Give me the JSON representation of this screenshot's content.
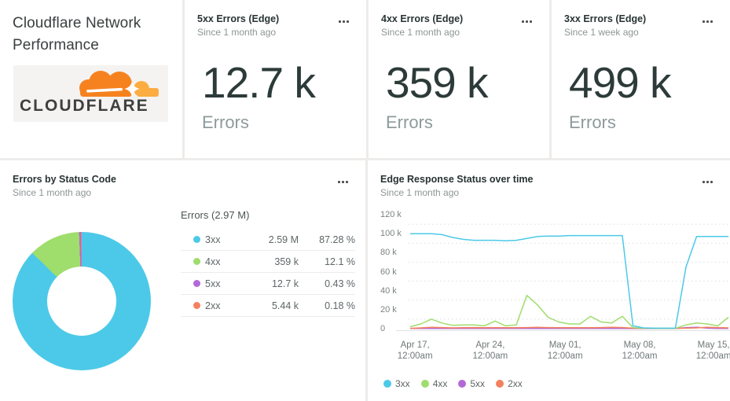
{
  "title_card": {
    "title": "Cloudflare Network Performance",
    "logo_text": "CLOUDFLARE"
  },
  "metric_cards": [
    {
      "title": "5xx Errors (Edge)",
      "subtitle": "Since 1 month ago",
      "value": "12.7 k",
      "unit": "Errors"
    },
    {
      "title": "4xx Errors (Edge)",
      "subtitle": "Since 1 month ago",
      "value": "359 k",
      "unit": "Errors"
    },
    {
      "title": "3xx Errors (Edge)",
      "subtitle": "Since 1 week ago",
      "value": "499 k",
      "unit": "Errors"
    }
  ],
  "colors": {
    "brand_orange": "#F6821F",
    "brand_orange_light": "#FBAD41",
    "status_3xx": "#4CC9E8",
    "status_4xx": "#9FDD6C",
    "status_5xx": "#B269D6",
    "status_2xx": "#F4805E"
  },
  "chart_data": [
    {
      "type": "pie",
      "donut": true,
      "title": "Errors by Status Code",
      "subtitle": "Since 1 month ago",
      "legend_header": "Errors (2.97 M)",
      "legend_position": "right",
      "slices": [
        {
          "label": "3xx",
          "value": "2.59 M",
          "percent": 87.28,
          "percent_label": "87.28 %",
          "color": "#4CC9E8"
        },
        {
          "label": "4xx",
          "value": "359 k",
          "percent": 12.1,
          "percent_label": "12.1 %",
          "color": "#9FDD6C"
        },
        {
          "label": "5xx",
          "value": "12.7 k",
          "percent": 0.43,
          "percent_label": "0.43 %",
          "color": "#B269D6"
        },
        {
          "label": "2xx",
          "value": "5.44 k",
          "percent": 0.18,
          "percent_label": "0.18 %",
          "color": "#F4805E"
        }
      ]
    },
    {
      "type": "line",
      "title": "Edge Response Status over time",
      "subtitle": "Since 1 month ago",
      "ylabel": "",
      "xlabel": "",
      "ylim_k": [
        0,
        120
      ],
      "grid": "dotted-horizontal",
      "legend_position": "bottom",
      "values_unit": "k",
      "x_range": [
        "Apr 16, 12:00am",
        "May 16, 12:00am"
      ],
      "y_ticks": [
        "120 k",
        "100 k",
        "80 k",
        "60 k",
        "40 k",
        "20 k",
        "0"
      ],
      "x_ticks": [
        {
          "label_line1": "Apr 17,",
          "label_line2": "12:00am",
          "x_frac": 0.02
        },
        {
          "label_line1": "Apr 24,",
          "label_line2": "12:00am",
          "x_frac": 0.254
        },
        {
          "label_line1": "May 01,",
          "label_line2": "12:00am",
          "x_frac": 0.487
        },
        {
          "label_line1": "May 08,",
          "label_line2": "12:00am",
          "x_frac": 0.719
        },
        {
          "label_line1": "May 15,",
          "label_line2": "12:00am",
          "x_frac": 0.949
        }
      ],
      "series": [
        {
          "name": "3xx",
          "color": "#4CC9E8",
          "values_k": [
            100,
            100,
            100,
            99,
            96,
            94,
            93,
            93,
            93,
            92.5,
            93,
            95,
            97,
            97.5,
            97.5,
            98,
            98,
            98,
            98,
            98,
            98,
            3,
            0.8,
            0.5,
            0.5,
            0.5,
            65,
            97,
            97,
            97,
            97
          ]
        },
        {
          "name": "4xx",
          "color": "#9FDD6C",
          "values_k": [
            2,
            5,
            10,
            6,
            3.5,
            4,
            4,
            3,
            8,
            3,
            4,
            35,
            25,
            12,
            7,
            5,
            5,
            13,
            7,
            6,
            13,
            1,
            0.5,
            0.3,
            0.3,
            0.3,
            4,
            6,
            5,
            3,
            12
          ]
        },
        {
          "name": "5xx",
          "color": "#B269D6",
          "values_k": [
            0.2,
            0.2,
            0.2,
            0.2,
            0.2,
            0.2,
            0.2,
            0.2,
            0.2,
            0.2,
            0.2,
            0.2,
            0.2,
            0.2,
            0.2,
            0.2,
            0.2,
            0.2,
            0.2,
            0.2,
            0.2,
            0.1,
            0.1,
            0.1,
            0.1,
            0.1,
            1.2,
            1.5,
            0.5,
            0.2,
            0.2
          ]
        },
        {
          "name": "2xx",
          "color": "#F4805E",
          "values_k": [
            0.3,
            0.8,
            1.5,
            1.2,
            0.8,
            1,
            1.2,
            1,
            1,
            1,
            1,
            1.2,
            1.5,
            1.2,
            1,
            1,
            1,
            1,
            1.2,
            1.5,
            1.2,
            0.5,
            0.3,
            0.3,
            0.3,
            0.3,
            0.5,
            0.8,
            1.5,
            1.2,
            0.8
          ]
        }
      ]
    }
  ]
}
